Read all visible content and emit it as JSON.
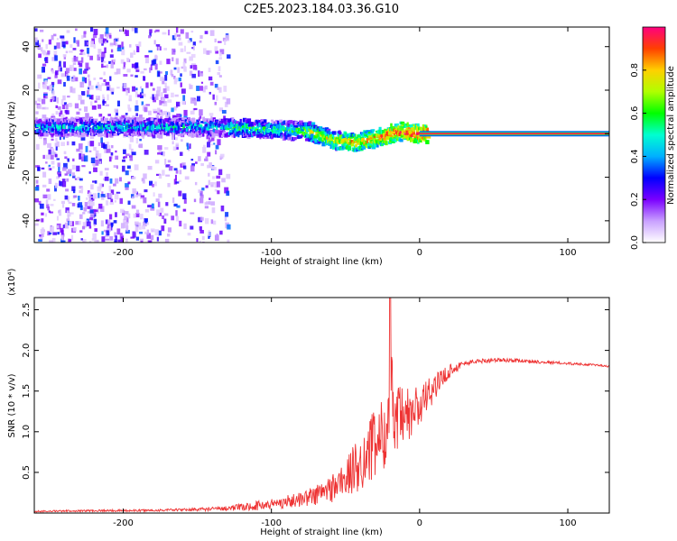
{
  "figure": {
    "title": "C2E5.2023.184.03.36.G10"
  },
  "chart_data": [
    {
      "type": "heatmap",
      "xlabel": "Height of straight line (km)",
      "ylabel": "Frequency (Hz)",
      "xlim": [
        -260,
        128
      ],
      "ylim": [
        -50,
        49
      ],
      "xticks": [
        -200,
        -100,
        0,
        100
      ],
      "xtick_labels": [
        "-200",
        "-100",
        "0",
        "100"
      ],
      "yticks": [
        -40,
        -20,
        0,
        20,
        40
      ],
      "ytick_labels": [
        "-40",
        "-20",
        "0",
        "20",
        "40"
      ],
      "grid": false,
      "colorbar": {
        "label": "Normalized spectral amplitude",
        "range": [
          0,
          1
        ],
        "ticks": [
          0.0,
          0.2,
          0.4,
          0.6,
          0.8
        ],
        "tick_labels": [
          "0.0",
          "0.2",
          "0.4",
          "0.6",
          "0.8"
        ],
        "colors": [
          "#ffffff",
          "#c9a0ff",
          "#7a00ff",
          "#0000ff",
          "#00b0ff",
          "#00ffd0",
          "#00ff00",
          "#b0ff00",
          "#ffd000",
          "#ff4000",
          "#ff0080"
        ]
      },
      "features": {
        "scatter_region_x": [
          -260,
          -130
        ],
        "ridge_center_hz": [
          {
            "x": -220,
            "y": 3
          },
          {
            "x": -150,
            "y": 3
          },
          {
            "x": -100,
            "y": 2
          },
          {
            "x": -75,
            "y": 1
          },
          {
            "x": -60,
            "y": -3
          },
          {
            "x": -45,
            "y": -4
          },
          {
            "x": -30,
            "y": -2
          },
          {
            "x": -15,
            "y": 1
          },
          {
            "x": 0,
            "y": 0
          }
        ],
        "constant_line": {
          "x_from": 0,
          "x_to": 128,
          "y": 0,
          "amplitude": 0.95
        }
      }
    },
    {
      "type": "line",
      "xlabel": "Height of straight line (km)",
      "ylabel": "SNR (10 * v/v)",
      "y_multiplier_label": "(x10⁴)",
      "xlim": [
        -260,
        128
      ],
      "ylim": [
        0,
        2.65
      ],
      "xticks": [
        -200,
        -100,
        0,
        100
      ],
      "xtick_labels": [
        "-200",
        "-100",
        "0",
        "100"
      ],
      "yticks": [
        0.5,
        1.0,
        1.5,
        2.0,
        2.5
      ],
      "ytick_labels": [
        "0.5",
        "1.0",
        "1.5",
        "2.0",
        "2.5"
      ],
      "grid": false,
      "series": [
        {
          "color": "#ee3333",
          "x": [
            -260,
            -220,
            -190,
            -160,
            -140,
            -120,
            -100,
            -90,
            -80,
            -70,
            -60,
            -50,
            -40,
            -30,
            -22,
            -20,
            -18,
            -10,
            0,
            10,
            20,
            30,
            40,
            50,
            60,
            70,
            80,
            90,
            100,
            110,
            120,
            128
          ],
          "y": [
            0.02,
            0.03,
            0.03,
            0.04,
            0.05,
            0.07,
            0.11,
            0.14,
            0.17,
            0.22,
            0.3,
            0.42,
            0.62,
            0.85,
            1.05,
            2.65,
            1.1,
            1.15,
            1.3,
            1.55,
            1.75,
            1.84,
            1.87,
            1.88,
            1.88,
            1.87,
            1.86,
            1.85,
            1.84,
            1.83,
            1.82,
            1.8
          ]
        }
      ],
      "noise_envelope": [
        {
          "x": -260,
          "a": 0.01
        },
        {
          "x": -160,
          "a": 0.015
        },
        {
          "x": -130,
          "a": 0.03
        },
        {
          "x": -100,
          "a": 0.07
        },
        {
          "x": -80,
          "a": 0.09
        },
        {
          "x": -60,
          "a": 0.18
        },
        {
          "x": -50,
          "a": 0.25
        },
        {
          "x": -40,
          "a": 0.35
        },
        {
          "x": -30,
          "a": 0.45
        },
        {
          "x": -15,
          "a": 0.45
        },
        {
          "x": 0,
          "a": 0.3
        },
        {
          "x": 10,
          "a": 0.15
        },
        {
          "x": 30,
          "a": 0.03
        },
        {
          "x": 128,
          "a": 0.01
        }
      ]
    }
  ]
}
